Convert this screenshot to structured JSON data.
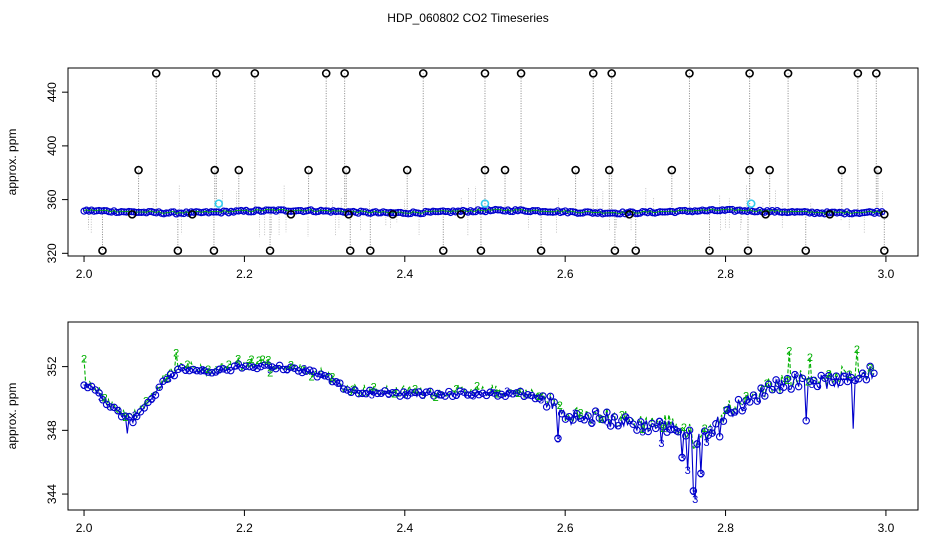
{
  "figure": {
    "title": "HDP_060802  CO2 Timeseries"
  },
  "colors": {
    "black": "#000000",
    "blue": "#0000cc",
    "green": "#00b000",
    "cyan": "#33ccee",
    "gray": "#888888"
  },
  "chart_data": [
    {
      "type": "scatter",
      "title": "",
      "xlabel": "",
      "ylabel": "approx. ppm",
      "xlim": [
        1.98,
        3.04
      ],
      "ylim": [
        318,
        458
      ],
      "xticks": [
        "2.0",
        "2.2",
        "2.4",
        "2.6",
        "2.8",
        "3.0"
      ],
      "yticks": [
        "320",
        "360",
        "400",
        "440"
      ],
      "baseline_ppm": 351,
      "spikes_high_x": [
        2.09,
        2.165,
        2.213,
        2.302,
        2.325,
        2.423,
        2.5,
        2.545,
        2.635,
        2.658,
        2.755,
        2.83,
        2.878,
        2.965,
        2.988
      ],
      "spikes_high_y": 454,
      "spikes_mid_x": [
        2.068,
        2.163,
        2.193,
        2.28,
        2.327,
        2.403,
        2.5,
        2.525,
        2.613,
        2.655,
        2.733,
        2.83,
        2.855,
        2.945,
        2.99
      ],
      "spikes_mid_y": 382,
      "spikes_low_x": [
        2.023,
        2.117,
        2.162,
        2.232,
        2.332,
        2.357,
        2.448,
        2.495,
        2.57,
        2.662,
        2.688,
        2.78,
        2.828,
        2.9,
        2.998
      ],
      "spikes_low_y": 322,
      "cyan_points": [
        [
          2.168,
          357
        ],
        [
          2.5,
          357
        ],
        [
          2.832,
          357
        ]
      ],
      "grid": false
    },
    {
      "type": "line",
      "title": "",
      "xlabel": "",
      "ylabel": "approx. ppm",
      "xlim": [
        1.98,
        3.04
      ],
      "ylim": [
        343,
        354.8
      ],
      "xticks": [
        "2.0",
        "2.2",
        "2.4",
        "2.6",
        "2.8",
        "3.0"
      ],
      "yticks": [
        "344",
        "348",
        "352"
      ],
      "marker_labels": [
        "3",
        "2"
      ],
      "profile_x": [
        2.0,
        2.02,
        2.04,
        2.06,
        2.08,
        2.1,
        2.12,
        2.14,
        2.16,
        2.2,
        2.26,
        2.3,
        2.32,
        2.34,
        2.4,
        2.5,
        2.55,
        2.58,
        2.6,
        2.62,
        2.64,
        2.66,
        2.68,
        2.7,
        2.72,
        2.74,
        2.76,
        2.78,
        2.8,
        2.82,
        2.84,
        2.86,
        2.88,
        2.9,
        2.92,
        2.94,
        2.96,
        2.98
      ],
      "profile_y": [
        351.0,
        350.2,
        349.2,
        348.6,
        349.8,
        351.0,
        351.9,
        351.7,
        351.6,
        352.1,
        351.9,
        351.4,
        350.8,
        350.4,
        350.3,
        350.3,
        350.3,
        349.8,
        348.9,
        348.7,
        348.9,
        348.6,
        348.4,
        348.3,
        348.3,
        348.2,
        347.4,
        347.8,
        349.1,
        349.6,
        350.1,
        350.9,
        351.0,
        351.3,
        351.0,
        351.1,
        351.3,
        351.6
      ],
      "dips_x": [
        2.055,
        2.59,
        2.72,
        2.745,
        2.752,
        2.76,
        2.762,
        2.77,
        2.793,
        2.9,
        2.96
      ],
      "dips_y": [
        347.8,
        347.5,
        347.2,
        346.3,
        345.5,
        344.2,
        343.7,
        345.3,
        347.6,
        348.6,
        348.1
      ],
      "peaks_x": [
        2.0,
        2.115,
        2.88,
        2.905,
        2.965
      ],
      "peaks_y": [
        352.5,
        352.9,
        353.0,
        352.6,
        353.1
      ],
      "grid": false
    }
  ]
}
